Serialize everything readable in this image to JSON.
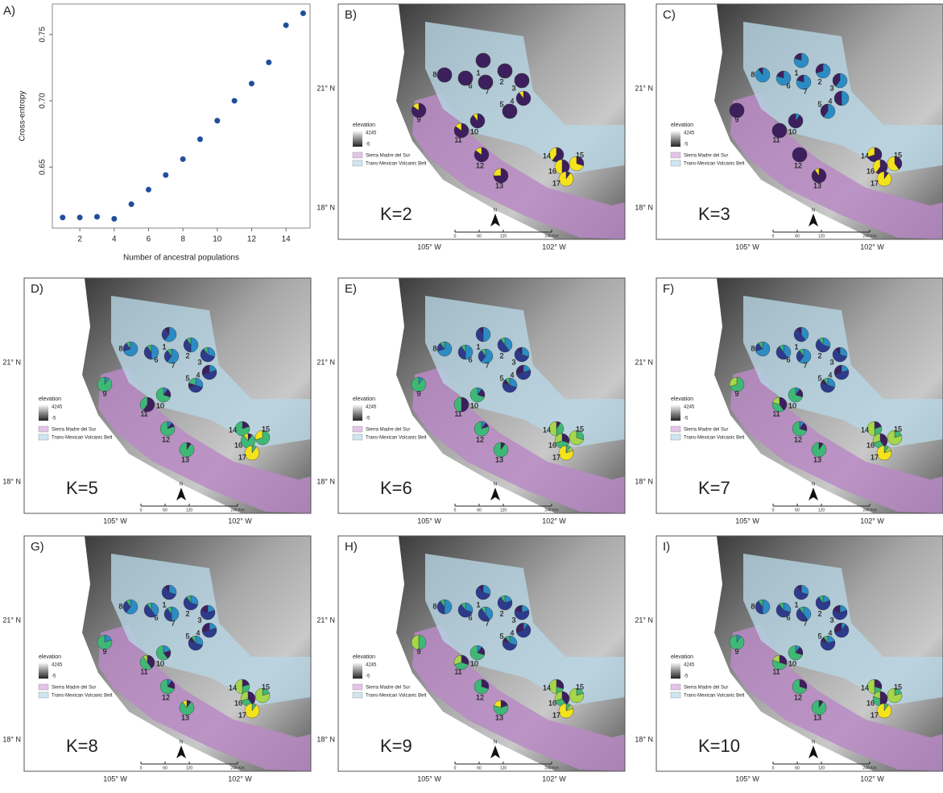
{
  "chart_data": [
    {
      "type": "scatter",
      "title": "A)",
      "x_label": "Number of ancestral populations",
      "y_label": "Cross-entropy",
      "color": "#1f4e9c",
      "x": [
        1,
        2,
        3,
        4,
        5,
        6,
        7,
        8,
        9,
        10,
        11,
        12,
        13,
        14,
        15
      ],
      "values": [
        0.612,
        0.612,
        0.6125,
        0.611,
        0.622,
        0.633,
        0.644,
        0.656,
        0.671,
        0.685,
        0.7,
        0.713,
        0.729,
        0.757,
        0.766
      ],
      "xlim": [
        0.4,
        15.4
      ],
      "ylim": [
        0.604,
        0.773
      ],
      "xticks": [
        2,
        4,
        6,
        8,
        10,
        12,
        14
      ],
      "yticks": [
        0.65,
        {
          "value": 0.7,
          "label": "0.70"
        },
        0.75
      ]
    },
    {
      "type": "map",
      "title": "B)",
      "k_label": "K=2",
      "colors": [
        "#3d1f5e",
        "#f4e31c"
      ],
      "pies": [
        [
          1,
          0
        ],
        [
          1,
          0
        ],
        [
          1,
          0
        ],
        [
          0.9,
          0.1
        ],
        [
          1,
          0
        ],
        [
          1,
          0
        ],
        [
          1,
          0
        ],
        [
          1,
          0
        ],
        [
          0.85,
          0.15
        ],
        [
          0.9,
          0.1
        ],
        [
          0.85,
          0.15
        ],
        [
          0.85,
          0.15
        ],
        [
          0.75,
          0.25
        ],
        [
          0.6,
          0.4
        ],
        [
          0.3,
          0.7
        ],
        [
          0.5,
          0.5
        ],
        [
          0.1,
          0.9
        ]
      ]
    },
    {
      "type": "map",
      "title": "C)",
      "k_label": "K=3",
      "colors": [
        "#2b8cc4",
        "#3d1f5e",
        "#f4e31c"
      ],
      "pies": [
        [
          0.8,
          0.2,
          0
        ],
        [
          0.7,
          0.3,
          0
        ],
        [
          0.6,
          0.4,
          0
        ],
        [
          0.5,
          0.5,
          0
        ],
        [
          0.6,
          0.4,
          0
        ],
        [
          0.8,
          0.2,
          0
        ],
        [
          0.8,
          0.2,
          0
        ],
        [
          0.9,
          0.1,
          0
        ],
        [
          0,
          1,
          0
        ],
        [
          0.1,
          0.9,
          0
        ],
        [
          0,
          1,
          0
        ],
        [
          0,
          1,
          0
        ],
        [
          0,
          0.9,
          0.1
        ],
        [
          0,
          0.7,
          0.3
        ],
        [
          0,
          0.4,
          0.6
        ],
        [
          0,
          0.6,
          0.4
        ],
        [
          0,
          0.1,
          0.9
        ]
      ]
    },
    {
      "type": "map",
      "title": "D)",
      "k_label": "K=5",
      "colors": [
        "#2b8cc4",
        "#2e3a8c",
        "#3d1f5e",
        "#3fb877",
        "#a6d64a",
        "#f4e31c"
      ],
      "pies": [
        [
          0.6,
          0.3,
          0.1,
          0,
          0,
          0
        ],
        [
          0.5,
          0.4,
          0,
          0.1,
          0,
          0
        ],
        [
          0.3,
          0.6,
          0,
          0.1,
          0,
          0
        ],
        [
          0.2,
          0.5,
          0.3,
          0,
          0,
          0
        ],
        [
          0.3,
          0.4,
          0.1,
          0.2,
          0,
          0
        ],
        [
          0.5,
          0.4,
          0,
          0.1,
          0,
          0
        ],
        [
          0.6,
          0.3,
          0,
          0.1,
          0,
          0
        ],
        [
          0.7,
          0.2,
          0,
          0.1,
          0,
          0
        ],
        [
          0.1,
          0,
          0,
          0.9,
          0,
          0
        ],
        [
          0.1,
          0,
          0.2,
          0.7,
          0,
          0
        ],
        [
          0,
          0,
          0.6,
          0.4,
          0,
          0
        ],
        [
          0.1,
          0,
          0.1,
          0.8,
          0,
          0
        ],
        [
          0,
          0,
          0.1,
          0.9,
          0,
          0
        ],
        [
          0,
          0,
          0.2,
          0.8,
          0,
          0
        ],
        [
          0,
          0,
          0,
          0.7,
          0,
          0.3
        ],
        [
          0,
          0,
          0.1,
          0.8,
          0,
          0.1
        ],
        [
          0,
          0,
          0,
          0.1,
          0,
          0.9
        ]
      ]
    },
    {
      "type": "map",
      "title": "E)",
      "k_label": "K=6",
      "colors": [
        "#2b8cc4",
        "#2e3a8c",
        "#3d1f5e",
        "#3fb877",
        "#a6d64a",
        "#f4e31c"
      ],
      "pies": [
        [
          0.5,
          0.4,
          0.1,
          0,
          0,
          0
        ],
        [
          0.4,
          0.5,
          0,
          0.1,
          0,
          0
        ],
        [
          0.3,
          0.6,
          0.1,
          0,
          0,
          0
        ],
        [
          0.2,
          0.5,
          0.3,
          0,
          0,
          0
        ],
        [
          0.3,
          0.5,
          0.1,
          0.1,
          0,
          0
        ],
        [
          0.5,
          0.4,
          0,
          0.1,
          0,
          0
        ],
        [
          0.6,
          0.3,
          0,
          0.1,
          0,
          0
        ],
        [
          0.7,
          0.2,
          0,
          0.1,
          0,
          0
        ],
        [
          0.1,
          0,
          0,
          0.9,
          0,
          0
        ],
        [
          0.1,
          0,
          0.2,
          0.7,
          0,
          0
        ],
        [
          0,
          0,
          0.5,
          0.5,
          0,
          0
        ],
        [
          0.1,
          0,
          0.1,
          0.8,
          0,
          0
        ],
        [
          0,
          0,
          0.1,
          0.9,
          0,
          0
        ],
        [
          0,
          0,
          0.1,
          0.4,
          0.5,
          0
        ],
        [
          0,
          0,
          0,
          0.3,
          0.7,
          0
        ],
        [
          0,
          0,
          0.3,
          0.4,
          0.3,
          0
        ],
        [
          0,
          0,
          0,
          0.1,
          0.1,
          0.8
        ]
      ]
    },
    {
      "type": "map",
      "title": "F)",
      "k_label": "K=7",
      "colors": [
        "#2b8cc4",
        "#2e3a8c",
        "#3d1f5e",
        "#3fb877",
        "#a6d64a",
        "#f4e31c"
      ],
      "pies": [
        [
          0.4,
          0.5,
          0.1,
          0,
          0,
          0
        ],
        [
          0.3,
          0.6,
          0,
          0.1,
          0,
          0
        ],
        [
          0.3,
          0.6,
          0.1,
          0,
          0,
          0
        ],
        [
          0.2,
          0.5,
          0.3,
          0,
          0,
          0
        ],
        [
          0.3,
          0.5,
          0.1,
          0.1,
          0,
          0
        ],
        [
          0.4,
          0.5,
          0,
          0.1,
          0,
          0
        ],
        [
          0.6,
          0.3,
          0,
          0.1,
          0,
          0
        ],
        [
          0.7,
          0.2,
          0,
          0.1,
          0,
          0
        ],
        [
          0,
          0,
          0,
          0.7,
          0.3,
          0
        ],
        [
          0.1,
          0,
          0.2,
          0.7,
          0,
          0
        ],
        [
          0,
          0,
          0.4,
          0.4,
          0.2,
          0
        ],
        [
          0.1,
          0,
          0.2,
          0.7,
          0,
          0
        ],
        [
          0,
          0,
          0.1,
          0.9,
          0,
          0
        ],
        [
          0,
          0,
          0.2,
          0.3,
          0.5,
          0
        ],
        [
          0,
          0,
          0,
          0.2,
          0.8,
          0
        ],
        [
          0,
          0,
          0.4,
          0.3,
          0.3,
          0
        ],
        [
          0,
          0,
          0,
          0.1,
          0.1,
          0.8
        ]
      ]
    },
    {
      "type": "map",
      "title": "G)",
      "k_label": "K=8",
      "colors": [
        "#2b8cc4",
        "#2e3a8c",
        "#3d1f5e",
        "#3fb877",
        "#a6d64a",
        "#f4e31c"
      ],
      "pies": [
        [
          0.3,
          0.6,
          0.1,
          0,
          0,
          0
        ],
        [
          0.3,
          0.6,
          0,
          0.1,
          0,
          0
        ],
        [
          0.2,
          0.6,
          0.2,
          0,
          0,
          0
        ],
        [
          0.2,
          0.5,
          0.3,
          0,
          0,
          0
        ],
        [
          0.3,
          0.5,
          0.1,
          0.1,
          0,
          0
        ],
        [
          0.4,
          0.5,
          0,
          0.1,
          0,
          0
        ],
        [
          0.5,
          0.4,
          0,
          0.1,
          0,
          0
        ],
        [
          0.6,
          0.3,
          0,
          0.1,
          0,
          0
        ],
        [
          0.2,
          0,
          0,
          0.8,
          0,
          0
        ],
        [
          0.2,
          0,
          0.2,
          0.6,
          0,
          0
        ],
        [
          0,
          0,
          0.4,
          0.5,
          0.1,
          0
        ],
        [
          0.1,
          0,
          0.2,
          0.7,
          0,
          0
        ],
        [
          0,
          0,
          0.1,
          0.8,
          0,
          0.1
        ],
        [
          0,
          0,
          0.2,
          0.3,
          0.5,
          0
        ],
        [
          0,
          0,
          0,
          0.2,
          0.8,
          0
        ],
        [
          0,
          0,
          0.4,
          0.3,
          0.3,
          0
        ],
        [
          0,
          0,
          0,
          0.1,
          0,
          0.9
        ]
      ]
    },
    {
      "type": "map",
      "title": "H)",
      "k_label": "K=9",
      "colors": [
        "#2b8cc4",
        "#2e3a8c",
        "#3d1f5e",
        "#3fb877",
        "#a6d64a",
        "#f4e31c"
      ],
      "pies": [
        [
          0.3,
          0.6,
          0.1,
          0,
          0,
          0
        ],
        [
          0.2,
          0.7,
          0,
          0.1,
          0,
          0
        ],
        [
          0.2,
          0.6,
          0.2,
          0,
          0,
          0
        ],
        [
          0.1,
          0.6,
          0.3,
          0,
          0,
          0
        ],
        [
          0.3,
          0.5,
          0.1,
          0.1,
          0,
          0
        ],
        [
          0.3,
          0.6,
          0,
          0.1,
          0,
          0
        ],
        [
          0.4,
          0.5,
          0,
          0.1,
          0,
          0
        ],
        [
          0.5,
          0.4,
          0,
          0.1,
          0,
          0
        ],
        [
          0,
          0,
          0,
          0.5,
          0.5,
          0
        ],
        [
          0.1,
          0,
          0.2,
          0.7,
          0,
          0
        ],
        [
          0,
          0,
          0.3,
          0.4,
          0.3,
          0
        ],
        [
          0,
          0,
          0.3,
          0.7,
          0,
          0
        ],
        [
          0,
          0,
          0.2,
          0.6,
          0,
          0.2
        ],
        [
          0,
          0,
          0.3,
          0.2,
          0.5,
          0
        ],
        [
          0,
          0,
          0,
          0.2,
          0.8,
          0
        ],
        [
          0,
          0,
          0.4,
          0.3,
          0.3,
          0
        ],
        [
          0,
          0,
          0,
          0.1,
          0.1,
          0.8
        ]
      ]
    },
    {
      "type": "map",
      "title": "I)",
      "k_label": "K=10",
      "colors": [
        "#2b8cc4",
        "#2e3a8c",
        "#3d1f5e",
        "#3fb877",
        "#a6d64a",
        "#f4e31c"
      ],
      "pies": [
        [
          0.3,
          0.6,
          0.1,
          0,
          0,
          0
        ],
        [
          0.2,
          0.7,
          0,
          0.1,
          0,
          0
        ],
        [
          0.2,
          0.6,
          0.2,
          0,
          0,
          0
        ],
        [
          0.1,
          0.6,
          0.3,
          0,
          0,
          0
        ],
        [
          0.2,
          0.6,
          0.1,
          0.1,
          0,
          0
        ],
        [
          0.3,
          0.6,
          0,
          0.1,
          0,
          0
        ],
        [
          0.4,
          0.5,
          0,
          0.1,
          0,
          0
        ],
        [
          0.5,
          0.4,
          0,
          0.1,
          0,
          0
        ],
        [
          0.1,
          0,
          0,
          0.9,
          0,
          0
        ],
        [
          0.1,
          0,
          0.2,
          0.7,
          0,
          0
        ],
        [
          0,
          0,
          0.3,
          0.5,
          0.2,
          0
        ],
        [
          0,
          0,
          0.3,
          0.7,
          0,
          0
        ],
        [
          0,
          0,
          0.1,
          0.9,
          0,
          0
        ],
        [
          0,
          0,
          0.3,
          0.2,
          0.5,
          0
        ],
        [
          0,
          0,
          0,
          0.2,
          0.8,
          0
        ],
        [
          0,
          0,
          0.5,
          0.3,
          0.2,
          0
        ],
        [
          0,
          0,
          0,
          0.1,
          0,
          0.9
        ]
      ]
    }
  ],
  "map_common": {
    "population_labels": [
      "1",
      "2",
      "3",
      "4",
      "5",
      "6",
      "7",
      "8",
      "9",
      "10",
      "11",
      "12",
      "13",
      "14",
      "15",
      "16",
      "17"
    ],
    "lat_labels": [
      "21° N",
      "18° N"
    ],
    "lon_labels": [
      "105° W",
      "102° W"
    ],
    "legend_title": "elevation",
    "legend_high": "4245",
    "legend_low": "-5",
    "region_labels": [
      "Sierra Madre del Sur",
      "Trans-Mexican Volcanic Belt"
    ],
    "scale_labels": [
      "0",
      "60",
      "120",
      "240 Km"
    ],
    "north": "N"
  }
}
